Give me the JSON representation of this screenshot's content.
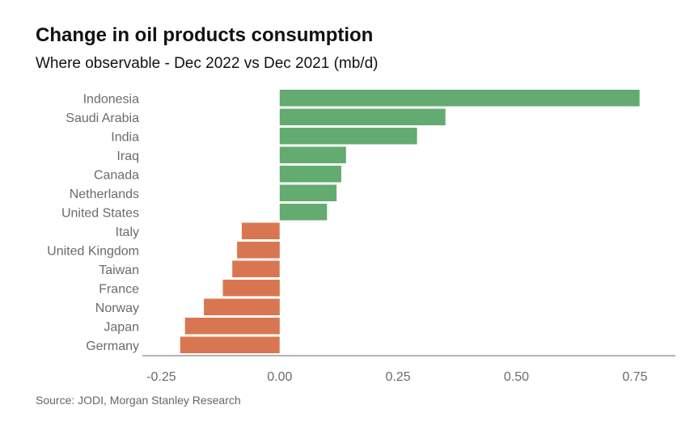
{
  "colors": {
    "positive": "#63ab71",
    "negative": "#d97652",
    "axis": "#888888",
    "label": "#6b6b6b"
  },
  "chart_data": {
    "type": "bar",
    "orientation": "horizontal",
    "title": "Change in oil products consumption",
    "subtitle": "Where observable - Dec 2022 vs Dec 2021 (mb/d)",
    "categories": [
      "Indonesia",
      "Saudi Arabia",
      "India",
      "Iraq",
      "Canada",
      "Netherlands",
      "United States",
      "Italy",
      "United Kingdom",
      "Taiwan",
      "France",
      "Norway",
      "Japan",
      "Germany"
    ],
    "values": [
      0.76,
      0.35,
      0.29,
      0.14,
      0.13,
      0.12,
      0.1,
      -0.08,
      -0.09,
      -0.1,
      -0.12,
      -0.16,
      -0.2,
      -0.21
    ],
    "xlim": [
      -0.29,
      0.81
    ],
    "xticks": [
      -0.25,
      0.0,
      0.25,
      0.5,
      0.75
    ],
    "xtick_labels": [
      "-0.25",
      "0.00",
      "0.25",
      "0.50",
      "0.75"
    ],
    "xlabel": "",
    "ylabel": "",
    "grid": false,
    "source": "Source: JODI, Morgan Stanley Research"
  }
}
